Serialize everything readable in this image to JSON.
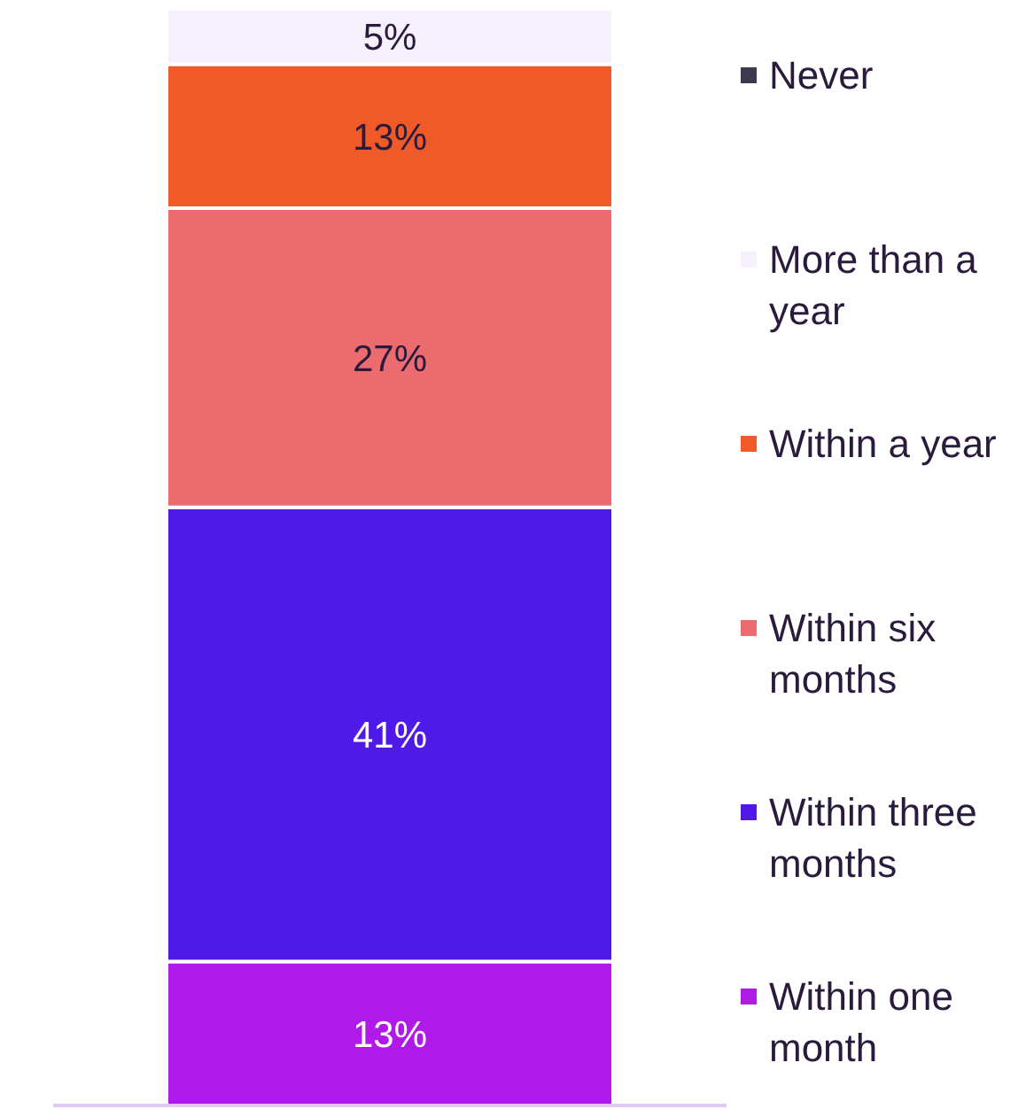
{
  "chart_data": {
    "type": "bar",
    "stacked": true,
    "legend": "right",
    "grid": false,
    "categories": [
      null
    ],
    "series": [
      {
        "name": "Within one month",
        "color": "#b01ae8",
        "values": [
          13
        ],
        "value_labels": [
          "13%"
        ]
      },
      {
        "name": "Within three months",
        "color": "#4f1ae8",
        "values": [
          41
        ],
        "value_labels": [
          "41%"
        ]
      },
      {
        "name": "Within six months",
        "color": "#ec6b6e",
        "values": [
          27
        ],
        "value_labels": [
          "27%"
        ]
      },
      {
        "name": "Within a year",
        "color": "#f05a28",
        "values": [
          13
        ],
        "value_labels": [
          "13%"
        ]
      },
      {
        "name": "More than a year",
        "color": "#f5f0fc",
        "values": [
          5
        ],
        "value_labels": [
          "5%"
        ]
      },
      {
        "name": "Never",
        "color": "#3c3a4e",
        "values": [
          null
        ],
        "value_labels": [
          null
        ]
      }
    ]
  }
}
